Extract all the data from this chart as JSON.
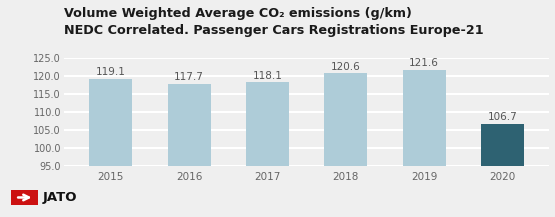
{
  "title_line1": "Volume Weighted Average CO₂ emissions (g/km)",
  "title_line2": "NEDC Correlated. Passenger Cars Registrations Europe-21",
  "categories": [
    "2015",
    "2016",
    "2017",
    "2018",
    "2019",
    "2020"
  ],
  "values": [
    119.1,
    117.7,
    118.1,
    120.6,
    121.6,
    106.7
  ],
  "bar_colors": [
    "#aeccd8",
    "#aeccd8",
    "#aeccd8",
    "#aeccd8",
    "#aeccd8",
    "#2e6272"
  ],
  "ylim": [
    95,
    125
  ],
  "yticks": [
    95.0,
    100.0,
    105.0,
    110.0,
    115.0,
    120.0,
    125.0
  ],
  "bg_color": "#efefef",
  "grid_color": "#ffffff",
  "label_color": "#666666",
  "value_label_color": "#555555",
  "bar_width": 0.55,
  "title_fontsize": 9.2,
  "tick_fontsize": 7.0,
  "value_fontsize": 7.5,
  "logo_text": "JATO",
  "logo_box_color": "#cc1111"
}
